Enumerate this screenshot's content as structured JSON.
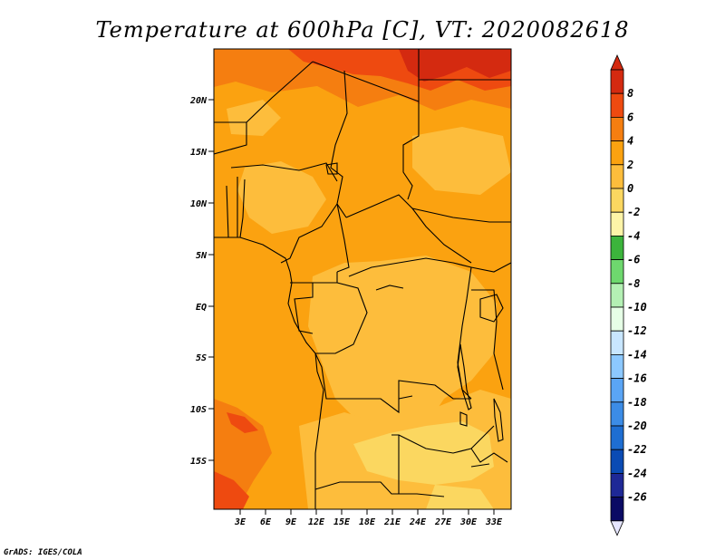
{
  "title": "Temperature at 600hPa [C], VT: 2020082618",
  "credit": "GrADS: IGES/COLA",
  "colors": {
    "fill_warm_1": "#fbd760",
    "fill_warm_2": "#fdbd3c",
    "fill_warm_3": "#fba210",
    "fill_warm_4": "#f57e10",
    "fill_warm_5": "#ee4a10",
    "fill_warm_6": "#d42a10",
    "border": "#000000"
  },
  "map": {
    "lat_labels": [
      "20N",
      "15N",
      "10N",
      "5N",
      "EQ",
      "5S",
      "10S",
      "15S"
    ],
    "lon_labels": [
      "3E",
      "6E",
      "9E",
      "12E",
      "15E",
      "18E",
      "21E",
      "24E",
      "27E",
      "30E",
      "33E"
    ]
  },
  "colorbar": {
    "labels": [
      "8",
      "6",
      "4",
      "2",
      "0",
      "-2",
      "-4",
      "-6",
      "-8",
      "-10",
      "-12",
      "-14",
      "-16",
      "-18",
      "-20",
      "-22",
      "-24",
      "-26"
    ],
    "colors": [
      "#d42a10",
      "#ee4a10",
      "#f57e10",
      "#fba210",
      "#fdbd3c",
      "#fbd760",
      "#fdf4a8",
      "#3cb43c",
      "#6ed86e",
      "#b4f0b4",
      "#e6ffe6",
      "#c8e6ff",
      "#8cc8ff",
      "#5aa5f5",
      "#3c8ce6",
      "#1e6ed2",
      "#0a4bb4",
      "#1e2896",
      "#0a0a64"
    ],
    "top_arrow_color": "#d42a10",
    "bottom_arrow_color": "#e6e6ff"
  }
}
